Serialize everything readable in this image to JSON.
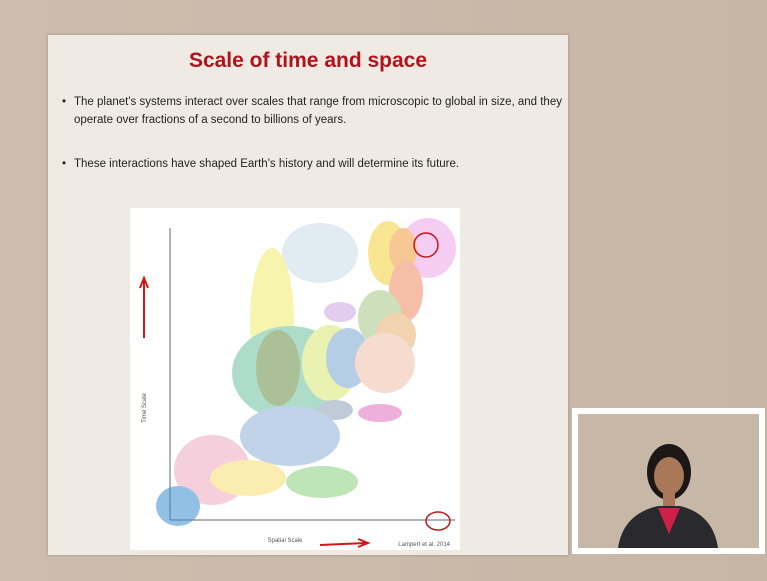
{
  "slide": {
    "title": "Scale of time and space",
    "bullets": [
      "The planet's systems interact over scales that range from microscopic to global in size, and they operate over fractions of a second to billions of years.",
      "These interactions have shaped Earth's history and will determine its future."
    ]
  },
  "figure": {
    "y_axis_label": "Time Scale",
    "x_axis_label": "Spatial Scale",
    "credit": "Lampert et al. 2014"
  }
}
